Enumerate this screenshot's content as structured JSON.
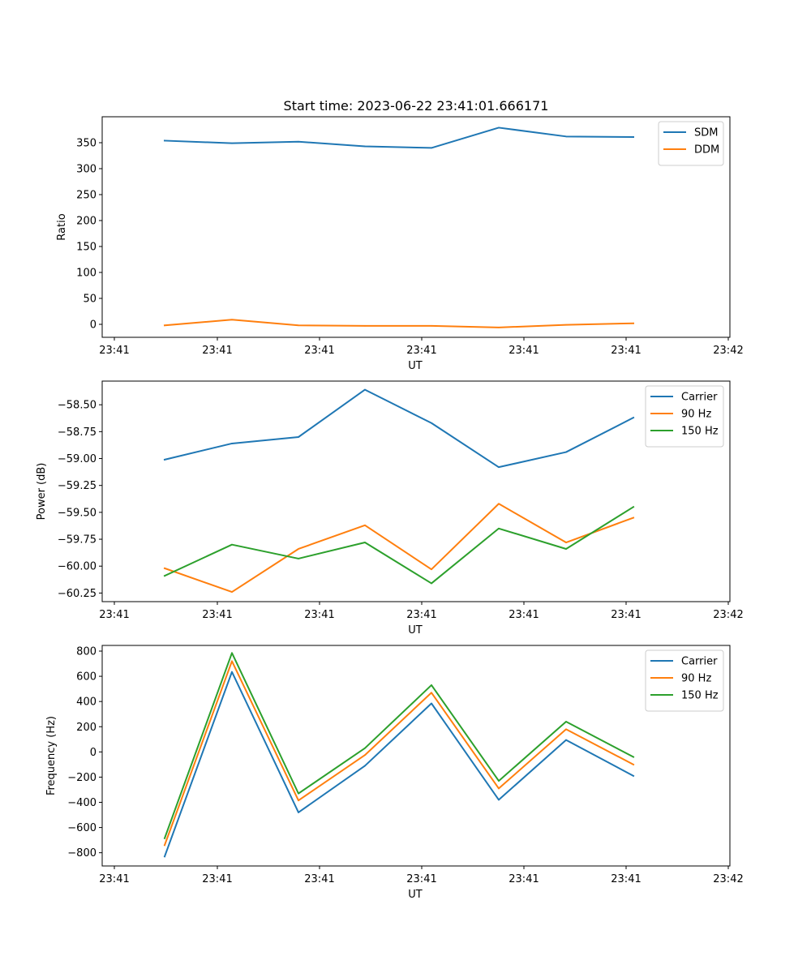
{
  "figure": {
    "title": "Start time: 2023-06-22 23:41:01.666171"
  },
  "chart_data": [
    {
      "type": "line",
      "xlabel": "UT",
      "ylabel": "Ratio",
      "x_tick_labels": [
        "23:41",
        "23:41",
        "23:41",
        "23:41",
        "23:41",
        "23:41",
        "23:42"
      ],
      "y_ticks": [
        0,
        50,
        100,
        150,
        200,
        250,
        300,
        350
      ],
      "ylim": [
        -25,
        400
      ],
      "legend_position": "upper-right",
      "series": [
        {
          "name": "SDM",
          "color": "#1f77b4",
          "values": [
            354,
            349,
            352,
            343,
            340,
            379,
            362,
            361
          ]
        },
        {
          "name": "DDM",
          "color": "#ff7f0e",
          "values": [
            -2,
            9,
            -2,
            -3,
            -3,
            -6,
            -1,
            2
          ]
        }
      ]
    },
    {
      "type": "line",
      "xlabel": "UT",
      "ylabel": "Power (dB)",
      "x_tick_labels": [
        "23:41",
        "23:41",
        "23:41",
        "23:41",
        "23:41",
        "23:41",
        "23:42"
      ],
      "y_ticks": [
        -60.25,
        -60.0,
        -59.75,
        -59.5,
        -59.25,
        -59.0,
        -58.75,
        -58.5
      ],
      "y_tick_labels": [
        "−60.25",
        "−60.00",
        "−59.75",
        "−59.50",
        "−59.25",
        "−59.00",
        "−58.75",
        "−58.50"
      ],
      "ylim": [
        -60.33,
        -58.28
      ],
      "legend_position": "upper-right",
      "series": [
        {
          "name": "Carrier",
          "color": "#1f77b4",
          "values": [
            -59.01,
            -58.86,
            -58.8,
            -58.36,
            -58.67,
            -59.08,
            -58.94,
            -58.62
          ]
        },
        {
          "name": "90 Hz",
          "color": "#ff7f0e",
          "values": [
            -60.02,
            -60.24,
            -59.84,
            -59.62,
            -60.03,
            -59.42,
            -59.78,
            -59.55
          ]
        },
        {
          "name": "150 Hz",
          "color": "#2ca02c",
          "values": [
            -60.09,
            -59.8,
            -59.93,
            -59.78,
            -60.16,
            -59.65,
            -59.84,
            -59.45
          ]
        }
      ]
    },
    {
      "type": "line",
      "xlabel": "UT",
      "ylabel": "Frequency (Hz)",
      "x_tick_labels": [
        "23:41",
        "23:41",
        "23:41",
        "23:41",
        "23:41",
        "23:41",
        "23:42"
      ],
      "y_ticks": [
        -800,
        -600,
        -400,
        -200,
        0,
        200,
        400,
        600,
        800
      ],
      "y_tick_labels": [
        "−800",
        "−600",
        "−400",
        "−200",
        "0",
        "200",
        "400",
        "600",
        "800"
      ],
      "ylim": [
        -905,
        845
      ],
      "legend_position": "upper-right",
      "series": [
        {
          "name": "Carrier",
          "color": "#1f77b4",
          "values": [
            -830,
            635,
            -480,
            -110,
            385,
            -380,
            95,
            -190
          ]
        },
        {
          "name": "90 Hz",
          "color": "#ff7f0e",
          "values": [
            -740,
            720,
            -385,
            -25,
            470,
            -290,
            180,
            -100
          ]
        },
        {
          "name": "150 Hz",
          "color": "#2ca02c",
          "values": [
            -685,
            785,
            -330,
            30,
            530,
            -230,
            240,
            -40
          ]
        }
      ]
    }
  ]
}
